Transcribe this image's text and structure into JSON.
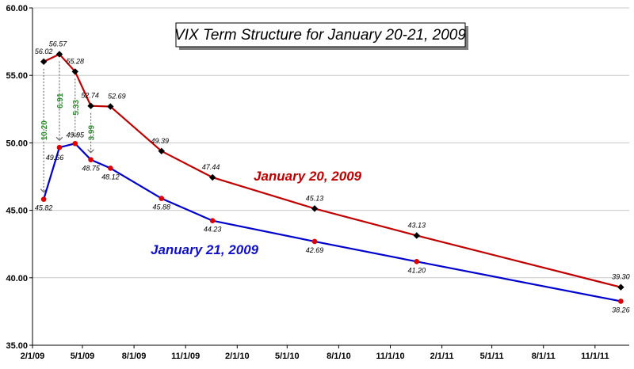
{
  "chart_data": {
    "type": "line",
    "title": "VIX Term Structure for January 20-21, 2009",
    "xlabel": "",
    "ylabel": "",
    "ylim": [
      35,
      60
    ],
    "yticks": [
      "35.00",
      "40.00",
      "45.00",
      "50.00",
      "55.00",
      "60.00"
    ],
    "xlim": [
      "2009-02-01",
      "2012-01-01"
    ],
    "xticks": [
      {
        "date": "2009-02-01",
        "label": "2/1/09"
      },
      {
        "date": "2009-05-01",
        "label": "5/1/09"
      },
      {
        "date": "2009-08-01",
        "label": "8/1/09"
      },
      {
        "date": "2009-11-01",
        "label": "11/1/09"
      },
      {
        "date": "2010-02-01",
        "label": "2/1/10"
      },
      {
        "date": "2010-05-01",
        "label": "5/1/10"
      },
      {
        "date": "2010-08-01",
        "label": "8/1/10"
      },
      {
        "date": "2010-11-01",
        "label": "11/1/10"
      },
      {
        "date": "2011-02-01",
        "label": "2/1/11"
      },
      {
        "date": "2011-05-01",
        "label": "5/1/11"
      },
      {
        "date": "2011-08-01",
        "label": "8/1/11"
      },
      {
        "date": "2011-11-01",
        "label": "11/1/11"
      }
    ],
    "grid": "horizontal",
    "series": [
      {
        "name": "January 20, 2009",
        "color": "#c00000",
        "marker": "diamond",
        "marker_color": "#000000",
        "x": [
          "2009-02-21",
          "2009-03-21",
          "2009-04-18",
          "2009-05-16",
          "2009-06-20",
          "2009-09-19",
          "2009-12-19",
          "2010-06-19",
          "2010-12-18",
          "2011-12-17"
        ],
        "values": [
          56.02,
          56.57,
          55.28,
          52.74,
          52.69,
          49.39,
          47.44,
          45.13,
          43.13,
          39.3
        ],
        "labels": [
          "56.02",
          "56.57",
          "55.28",
          "52.74",
          "52.69",
          "49.39",
          "47.44",
          "45.13",
          "43.13",
          "39.30"
        ]
      },
      {
        "name": "January 21, 2009",
        "color": "#0000cc",
        "marker": "circle",
        "marker_color": "#dd0000",
        "x": [
          "2009-02-21",
          "2009-03-21",
          "2009-04-18",
          "2009-05-16",
          "2009-06-20",
          "2009-09-19",
          "2009-12-19",
          "2010-06-19",
          "2010-12-18",
          "2011-12-17"
        ],
        "values": [
          45.82,
          49.66,
          49.95,
          48.75,
          48.12,
          45.88,
          44.23,
          42.69,
          41.2,
          38.26
        ],
        "labels": [
          "45.82",
          "49.66",
          "49.95",
          "48.75",
          "48.12",
          "45.88",
          "44.23",
          "42.69",
          "41.20",
          "38.26"
        ]
      }
    ],
    "annotations": [
      {
        "label": "10.20",
        "date": "2009-02-21",
        "from": 56.02,
        "to": 45.82
      },
      {
        "label": "6.91",
        "date": "2009-03-21",
        "from": 56.57,
        "to": 49.66
      },
      {
        "label": "5.33",
        "date": "2009-04-18",
        "from": 55.28,
        "to": 49.95
      },
      {
        "label": "3.99",
        "date": "2009-05-16",
        "from": 52.74,
        "to": 48.75
      }
    ]
  }
}
